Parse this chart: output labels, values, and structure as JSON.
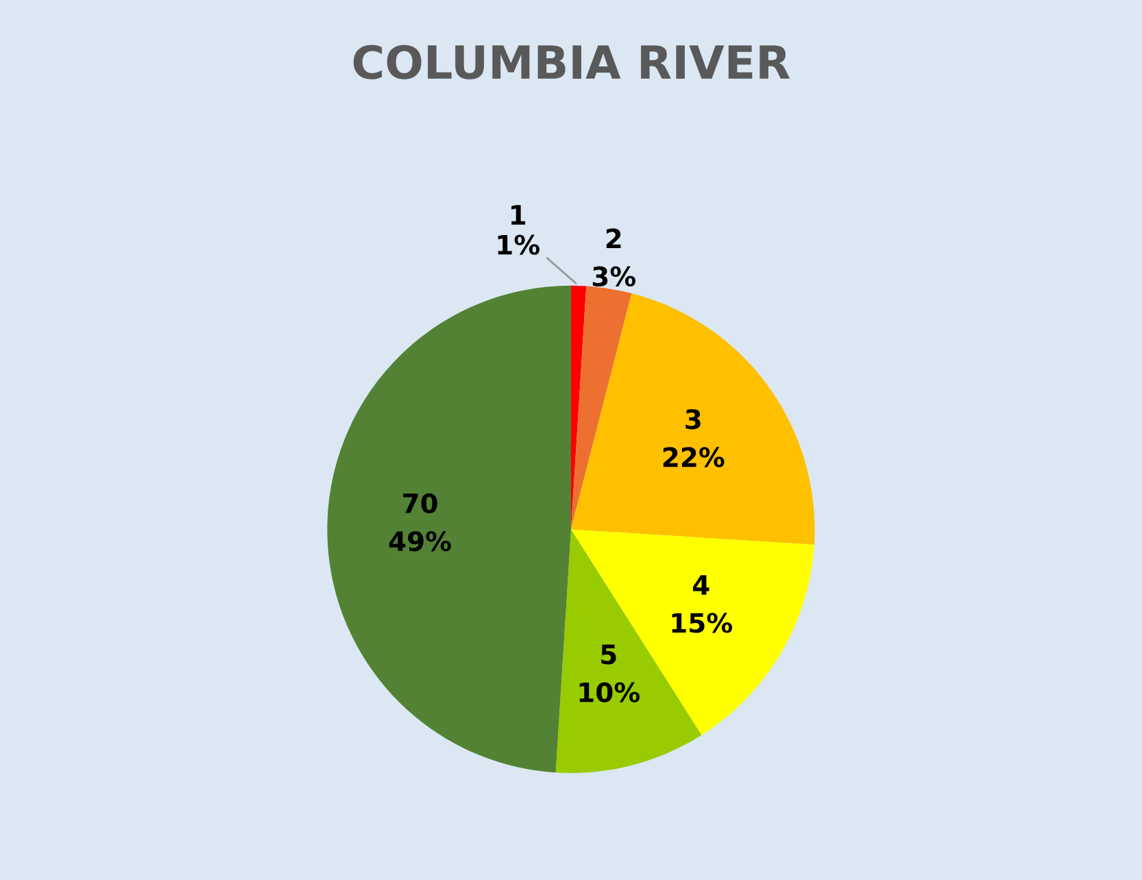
{
  "chart_data": {
    "type": "pie",
    "title": "COLUMBIA RIVER",
    "categories": [
      "1",
      "2",
      "3",
      "4",
      "5",
      "70"
    ],
    "values": [
      1,
      3,
      22,
      15,
      10,
      49
    ],
    "colors": [
      "#ff0000",
      "#ee7030",
      "#ffc000",
      "#ffff00",
      "#99cc00",
      "#548235"
    ],
    "value_labels": [
      "1%",
      "3%",
      "22%",
      "15%",
      "10%",
      "49%"
    ],
    "legend": false
  }
}
